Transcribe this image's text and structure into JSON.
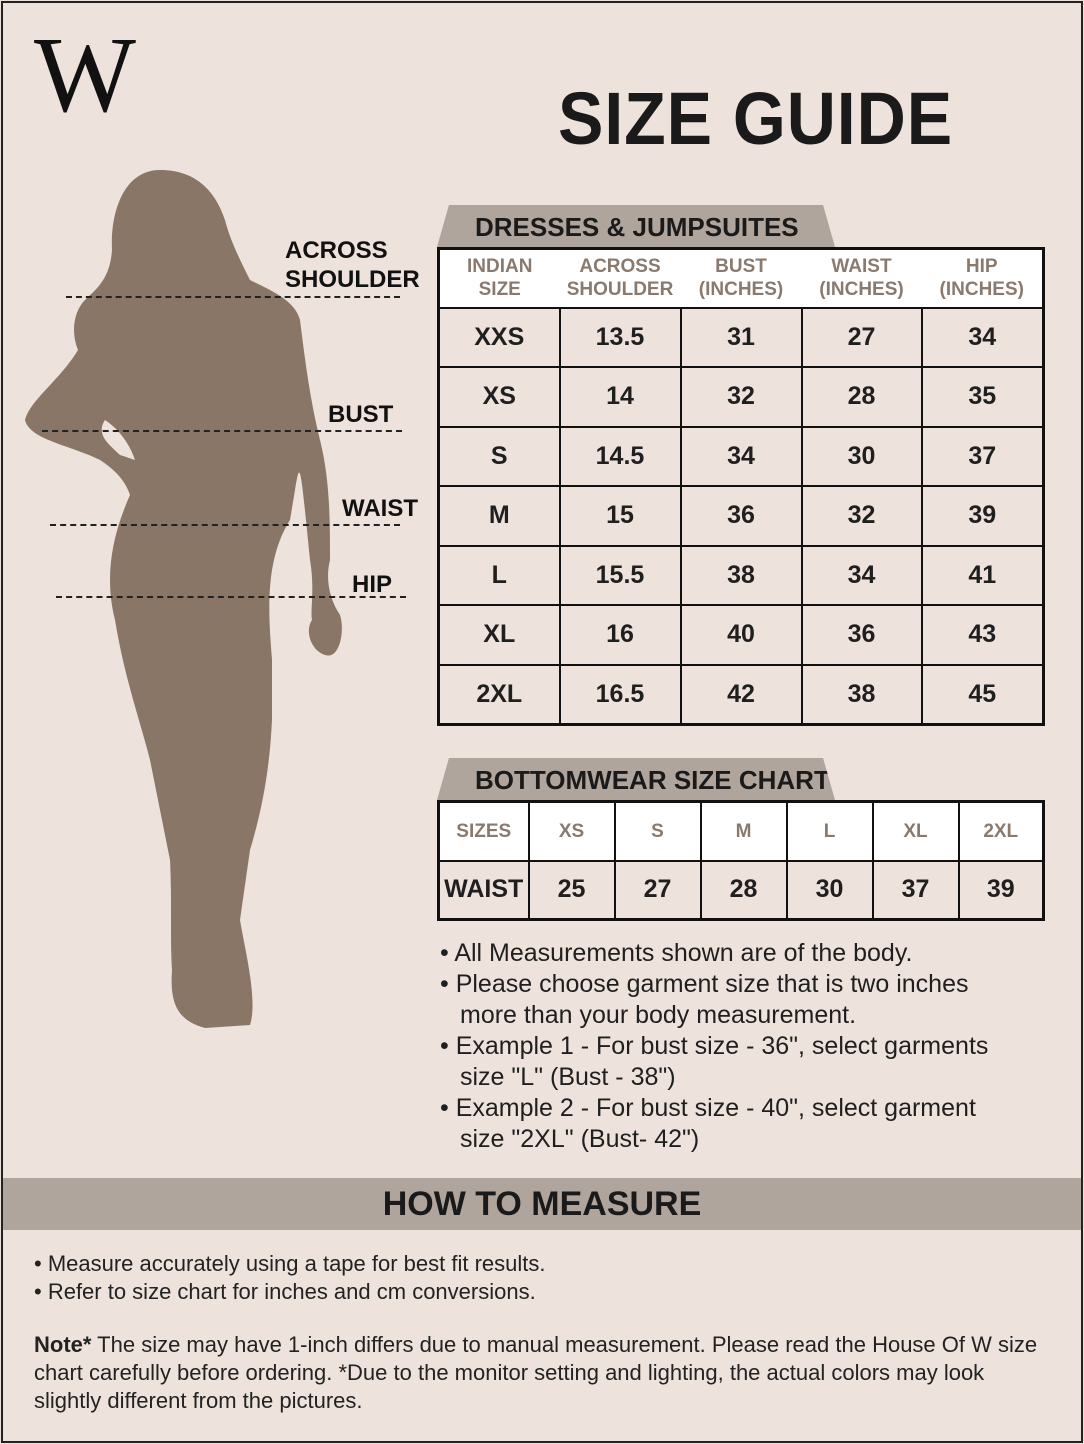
{
  "brand": {
    "logo": "W"
  },
  "title": "SIZE GUIDE",
  "colors": {
    "background": "#ede3dc",
    "tab": "#b0a59c",
    "silhouette": "#8a7667",
    "header_text": "#8a7a6e"
  },
  "figure": {
    "labels": {
      "shoulder": "ACROSS SHOULDER",
      "bust": "BUST",
      "waist": "WAIST",
      "hip": "HIP"
    }
  },
  "dresses": {
    "title": "DRESSES & JUMPSUITES",
    "headers": [
      "INDIAN SIZE",
      "ACROSS SHOULDER",
      "BUST (INCHES)",
      "WAIST (INCHES)",
      "HIP (INCHES)"
    ],
    "rows": [
      [
        "XXS",
        "13.5",
        "31",
        "27",
        "34"
      ],
      [
        "XS",
        "14",
        "32",
        "28",
        "35"
      ],
      [
        "S",
        "14.5",
        "34",
        "30",
        "37"
      ],
      [
        "M",
        "15",
        "36",
        "32",
        "39"
      ],
      [
        "L",
        "15.5",
        "38",
        "34",
        "41"
      ],
      [
        "XL",
        "16",
        "40",
        "36",
        "43"
      ],
      [
        "2XL",
        "16.5",
        "42",
        "38",
        "45"
      ]
    ]
  },
  "bottomwear": {
    "title": "BOTTOMWEAR SIZE CHART",
    "headers": [
      "SIZES",
      "XS",
      "S",
      "M",
      "L",
      "XL",
      "2XL"
    ],
    "row": [
      "WAIST",
      "25",
      "27",
      "28",
      "30",
      "37",
      "39"
    ]
  },
  "notes": [
    "• All Measurements shown are of the body.",
    "• Please choose garment size that is two inches",
    "more than your body measurement.",
    "• Example 1  - For bust size - 36\", select garments",
    "size \"L\" (Bust - 38\")",
    "• Example 2  - For bust size - 40\", select garment",
    "size \"2XL\" (Bust- 42\")"
  ],
  "how_to_measure": {
    "title": "HOW TO MEASURE",
    "items": [
      "• Measure accurately using a tape for best fit results.",
      "• Refer to size chart for inches and cm conversions."
    ],
    "note_label": "Note*",
    "note_text": " The size may have 1-inch differs due to manual measurement. Please read the House Of W size chart carefully before ordering. *Due to the monitor setting and lighting, the actual colors may look slightly different from the pictures."
  }
}
